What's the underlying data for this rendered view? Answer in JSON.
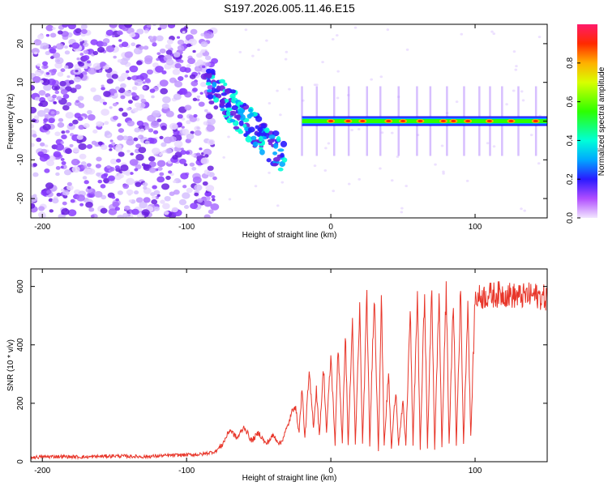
{
  "title": "S197.2026.005.11.46.E15",
  "chart_data": [
    {
      "type": "heatmap",
      "xlabel": "Height of straight line (km)",
      "ylabel": "Frequency (Hz)",
      "xlim": [
        -208,
        150
      ],
      "ylim": [
        -25,
        25
      ],
      "xticks": [
        -200,
        -100,
        0,
        100
      ],
      "yticks": [
        -20,
        -10,
        0,
        10,
        20
      ],
      "colorbar": {
        "label": "Normalized spectral amplitude",
        "range": [
          0,
          1
        ],
        "ticks": [
          0.0,
          0.2,
          0.4,
          0.6,
          0.8
        ]
      },
      "description_points": {
        "noise_region_x": [
          -208,
          -80
        ],
        "track_start_x": -85,
        "track_start_freq": 10,
        "track_dip_x": -32,
        "track_dip_freq": -10,
        "line_start_x": -20,
        "line_freq": 0,
        "hotspots_x": [
          0,
          12,
          22,
          40,
          50,
          62,
          78,
          85,
          95,
          110,
          125,
          142
        ]
      }
    },
    {
      "type": "line",
      "xlabel": "Height of straight line (km)",
      "ylabel": "SNR (10 * v/v)",
      "xlim": [
        -208,
        150
      ],
      "ylim": [
        0,
        660
      ],
      "xticks": [
        -200,
        -100,
        0,
        100
      ],
      "yticks": [
        0,
        200,
        400,
        600
      ],
      "series": [
        {
          "name": "SNR",
          "color": "#e8362a",
          "x": [
            -208,
            -190,
            -170,
            -150,
            -130,
            -110,
            -90,
            -80,
            -75,
            -70,
            -65,
            -60,
            -55,
            -50,
            -45,
            -40,
            -35,
            -30,
            -25,
            -22,
            -20,
            -18,
            -15,
            -12,
            -10,
            -8,
            -5,
            -3,
            0,
            3,
            5,
            8,
            10,
            12,
            15,
            17,
            20,
            22,
            25,
            27,
            30,
            33,
            35,
            37,
            40,
            42,
            45,
            47,
            50,
            52,
            55,
            57,
            60,
            62,
            65,
            67,
            70,
            72,
            75,
            77,
            80,
            82,
            85,
            87,
            90,
            92,
            95,
            97,
            100,
            110,
            120,
            130,
            140,
            150
          ],
          "values": [
            15,
            18,
            16,
            20,
            17,
            22,
            25,
            35,
            60,
            110,
            80,
            120,
            70,
            100,
            60,
            90,
            60,
            120,
            200,
            100,
            250,
            80,
            300,
            120,
            250,
            90,
            320,
            100,
            360,
            60,
            400,
            60,
            450,
            55,
            480,
            50,
            520,
            55,
            560,
            50,
            580,
            40,
            560,
            60,
            300,
            45,
            250,
            60,
            200,
            55,
            520,
            60,
            580,
            40,
            590,
            50,
            600,
            45,
            580,
            50,
            600,
            60,
            560,
            55,
            590,
            60,
            550,
            80,
            560,
            570,
            575,
            565,
            570,
            560
          ]
        }
      ]
    }
  ]
}
